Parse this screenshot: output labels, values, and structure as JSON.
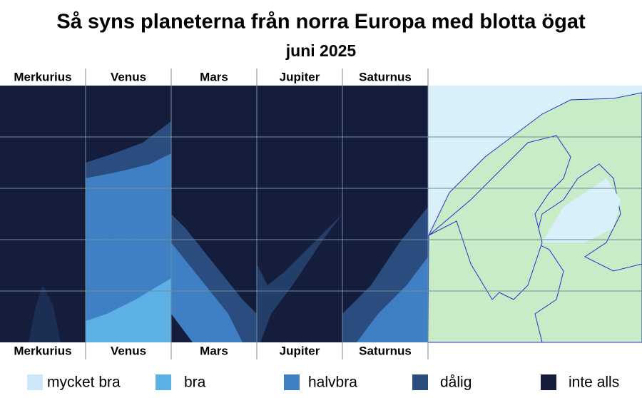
{
  "header": {
    "title": "Så syns planeterna från norra Europa med blotta ögat",
    "subtitle": "juni 2025"
  },
  "planets": [
    "Merkurius",
    "Venus",
    "Mars",
    "Jupiter",
    "Saturnus"
  ],
  "legend": [
    {
      "label": "mycket bra",
      "color": "#cce8f9"
    },
    {
      "label": "bra",
      "color": "#5cb0e4"
    },
    {
      "label": "halvbra",
      "color": "#3f7fc4"
    },
    {
      "label": "dålig",
      "color": "#2b4c7e"
    },
    {
      "label": "inte alls",
      "color": "#141e3c"
    }
  ]
}
